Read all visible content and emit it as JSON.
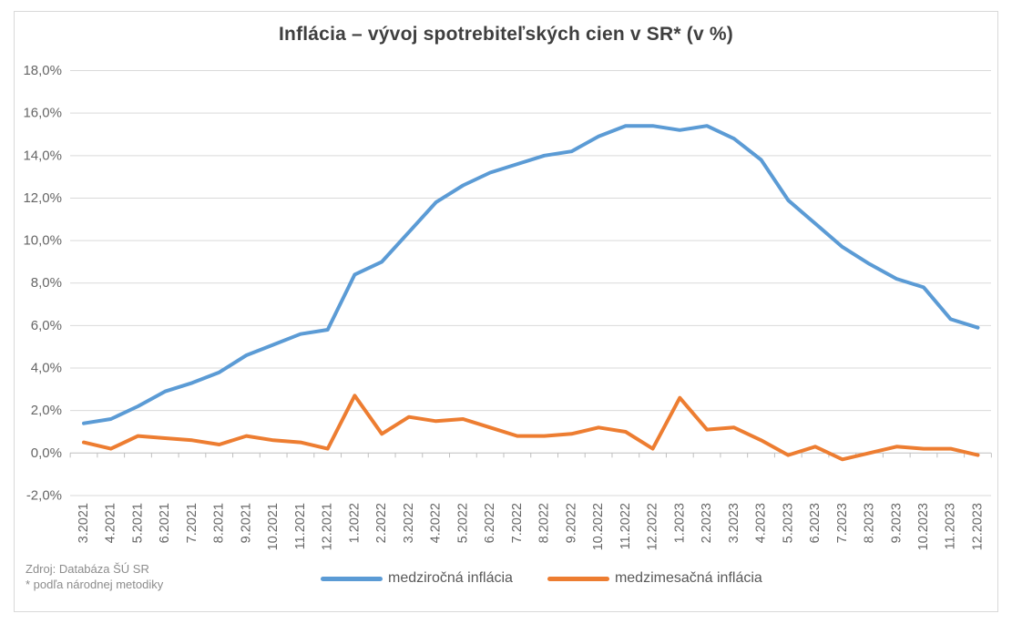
{
  "title": "Inflácia –  vývoj spotrebiteľských cien v SR* (v %)",
  "source": {
    "line1": "Zdroj: Databáza ŠÚ SR",
    "line2": "* podľa národnej metodiky"
  },
  "colors": {
    "background": "#ffffff",
    "border": "#d9d9d9",
    "gridline": "#d9d9d9",
    "axis_line": "#bfbfbf",
    "axis_labels": "#666666",
    "title": "#3f3f3f",
    "source_text": "#8c8c8c",
    "legend_text": "#595959",
    "series_yoy": "#5b9bd5",
    "series_mom": "#ed7d31"
  },
  "chart_data": {
    "type": "line",
    "title": "Inflácia –  vývoj spotrebiteľských cien v SR* (v %)",
    "xlabel": "",
    "ylabel": "",
    "ylim": [
      -2,
      18
    ],
    "ytick_step": 2,
    "ytick_format": "percent-comma-1dp",
    "grid": true,
    "legend_position": "bottom",
    "categories": [
      "3.2021",
      "4.2021",
      "5.2021",
      "6.2021",
      "7.2021",
      "8.2021",
      "9.2021",
      "10.2021",
      "11.2021",
      "12.2021",
      "1.2022",
      "2.2022",
      "3.2022",
      "4.2022",
      "5.2022",
      "6.2022",
      "7.2022",
      "8.2022",
      "9.2022",
      "10.2022",
      "11.2022",
      "12.2022",
      "1.2023",
      "2.2023",
      "3.2023",
      "4.2023",
      "5.2023",
      "6.2023",
      "7.2023",
      "8.2023",
      "9.2023",
      "10.2023",
      "11.2023",
      "12.2023"
    ],
    "series": [
      {
        "name": "medziročná inflácia",
        "color": "#5b9bd5",
        "values": [
          1.4,
          1.6,
          2.2,
          2.9,
          3.3,
          3.8,
          4.6,
          5.1,
          5.6,
          5.8,
          8.4,
          9.0,
          10.4,
          11.8,
          12.6,
          13.2,
          13.6,
          14.0,
          14.2,
          14.9,
          15.4,
          15.4,
          15.2,
          15.4,
          14.8,
          13.8,
          11.9,
          10.8,
          9.7,
          8.9,
          8.2,
          7.8,
          6.3,
          5.9
        ]
      },
      {
        "name": "medzimesačná inflácia",
        "color": "#ed7d31",
        "values": [
          0.5,
          0.2,
          0.8,
          0.7,
          0.6,
          0.4,
          0.8,
          0.6,
          0.5,
          0.2,
          2.7,
          0.9,
          1.7,
          1.5,
          1.6,
          1.2,
          0.8,
          0.8,
          0.9,
          1.2,
          1.0,
          0.2,
          2.6,
          1.1,
          1.2,
          0.6,
          -0.1,
          0.3,
          -0.3,
          0.0,
          0.3,
          0.2,
          0.2,
          -0.1
        ]
      }
    ]
  }
}
